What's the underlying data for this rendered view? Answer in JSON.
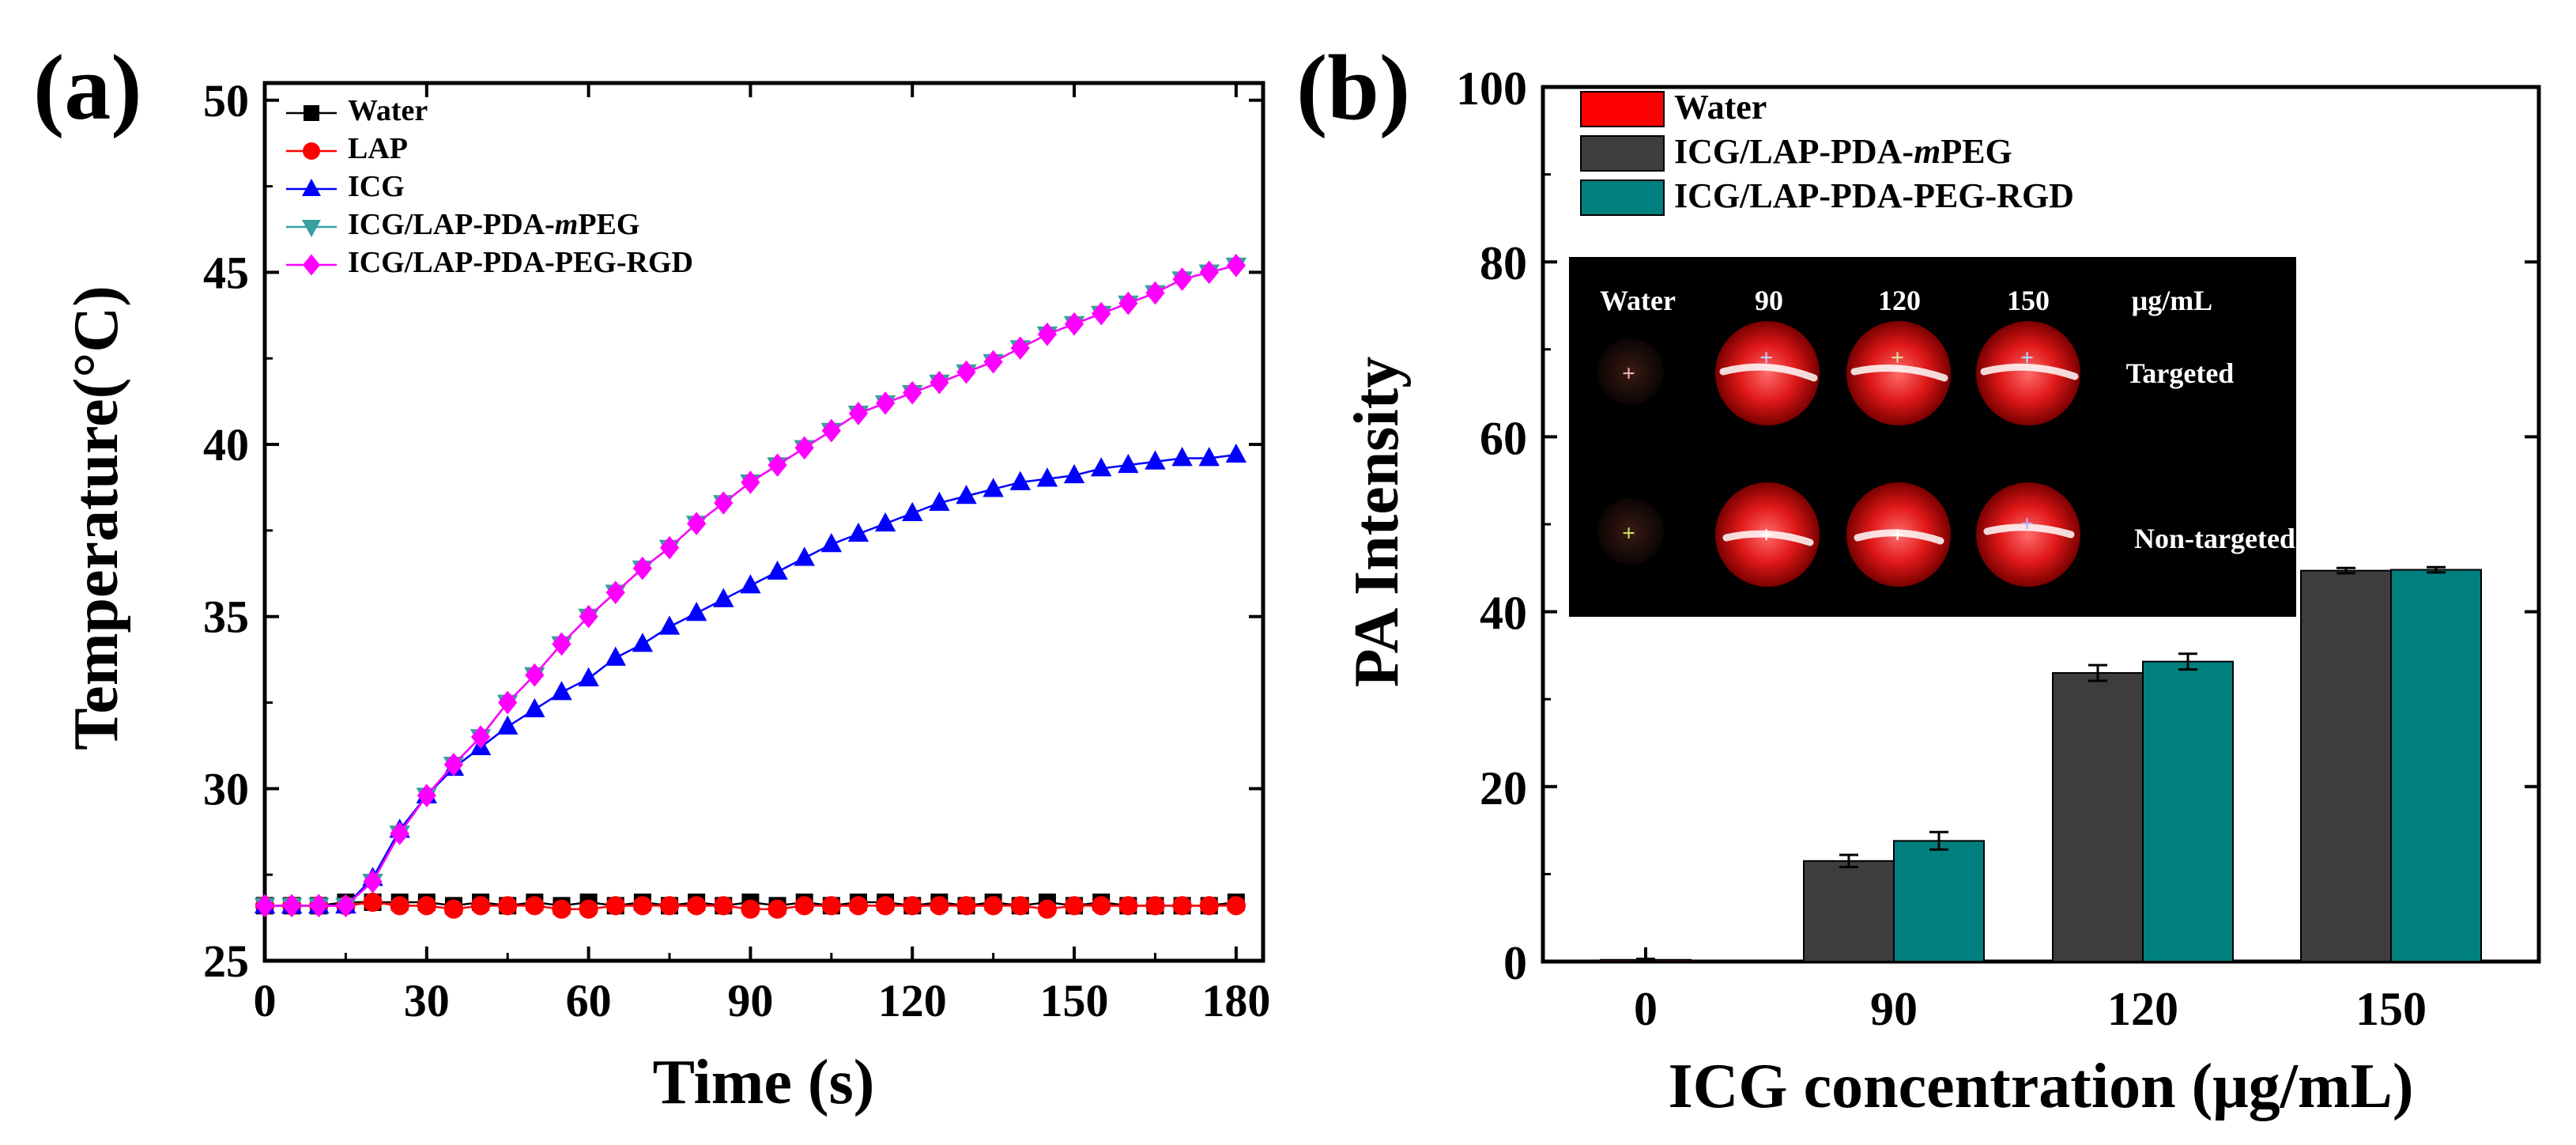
{
  "panel_labels": [
    "(a)",
    "(b)"
  ],
  "colors": {
    "water": "#000000",
    "lap": "#ff0000",
    "icg": "#0000ff",
    "mpeg": "#3a9e9e",
    "rgd": "#ff00ff",
    "bar_water": "#ff0000",
    "bar_mpeg": "#3d3d3d",
    "bar_rgd": "#007f7f"
  },
  "chart_data": [
    {
      "type": "line",
      "panel": "(a)",
      "title": "",
      "xlabel": "Time (s)",
      "ylabel": "Temperature(°C)",
      "xlim": [
        0,
        185
      ],
      "ylim": [
        25,
        50.5
      ],
      "xticks": [
        0,
        30,
        60,
        90,
        120,
        150,
        180
      ],
      "yticks": [
        25,
        30,
        35,
        40,
        45,
        50
      ],
      "legend_position": "top-left",
      "x": [
        0,
        5,
        10,
        15,
        20,
        25,
        30,
        35,
        40,
        45,
        50,
        55,
        60,
        65,
        70,
        75,
        80,
        85,
        90,
        95,
        100,
        105,
        110,
        115,
        120,
        125,
        130,
        135,
        140,
        145,
        150,
        155,
        160,
        165,
        170,
        175,
        180
      ],
      "series": [
        {
          "name": "Water",
          "marker": "square",
          "color_key": "water",
          "values": [
            26.6,
            26.6,
            26.6,
            26.7,
            26.7,
            26.7,
            26.7,
            26.6,
            26.7,
            26.6,
            26.7,
            26.6,
            26.7,
            26.6,
            26.7,
            26.6,
            26.7,
            26.6,
            26.7,
            26.6,
            26.7,
            26.6,
            26.7,
            26.7,
            26.6,
            26.7,
            26.6,
            26.7,
            26.6,
            26.7,
            26.6,
            26.7,
            26.6,
            26.6,
            26.6,
            26.6,
            26.7
          ]
        },
        {
          "name": "LAP",
          "marker": "circle",
          "color_key": "lap",
          "values": [
            26.6,
            26.6,
            26.6,
            26.6,
            26.7,
            26.6,
            26.6,
            26.5,
            26.6,
            26.6,
            26.6,
            26.5,
            26.5,
            26.6,
            26.6,
            26.6,
            26.6,
            26.6,
            26.5,
            26.5,
            26.6,
            26.6,
            26.6,
            26.6,
            26.6,
            26.6,
            26.6,
            26.6,
            26.6,
            26.5,
            26.6,
            26.6,
            26.6,
            26.6,
            26.6,
            26.6,
            26.6
          ]
        },
        {
          "name": "ICG",
          "marker": "triangle-up",
          "color_key": "icg",
          "values": [
            26.6,
            26.6,
            26.6,
            26.6,
            27.4,
            28.8,
            29.8,
            30.6,
            31.2,
            31.8,
            32.3,
            32.8,
            33.2,
            33.8,
            34.2,
            34.7,
            35.1,
            35.5,
            35.9,
            36.3,
            36.7,
            37.1,
            37.4,
            37.7,
            38.0,
            38.3,
            38.5,
            38.7,
            38.9,
            39.0,
            39.1,
            39.3,
            39.4,
            39.5,
            39.6,
            39.6,
            39.7
          ]
        },
        {
          "name": "ICG/LAP-PDA-mPEG",
          "marker": "triangle-down",
          "color_key": "mpeg",
          "values": [
            26.6,
            26.6,
            26.6,
            26.6,
            27.3,
            28.7,
            29.8,
            30.7,
            31.5,
            32.5,
            33.3,
            34.2,
            35.0,
            35.7,
            36.4,
            37.0,
            37.7,
            38.3,
            38.9,
            39.4,
            39.9,
            40.4,
            40.9,
            41.2,
            41.5,
            41.8,
            42.1,
            42.4,
            42.8,
            43.2,
            43.5,
            43.8,
            44.1,
            44.4,
            44.8,
            45.0,
            45.2
          ]
        },
        {
          "name": "ICG/LAP-PDA-PEG-RGD",
          "marker": "diamond",
          "color_key": "rgd",
          "values": [
            26.6,
            26.6,
            26.6,
            26.6,
            27.3,
            28.7,
            29.8,
            30.7,
            31.5,
            32.5,
            33.3,
            34.2,
            35.0,
            35.7,
            36.4,
            37.0,
            37.7,
            38.3,
            38.9,
            39.4,
            39.9,
            40.4,
            40.9,
            41.2,
            41.5,
            41.8,
            42.1,
            42.4,
            42.8,
            43.2,
            43.5,
            43.8,
            44.1,
            44.4,
            44.8,
            45.0,
            45.2
          ]
        }
      ]
    },
    {
      "type": "bar",
      "panel": "(b)",
      "title": "",
      "xlabel": "ICG concentration (μg/mL)",
      "ylabel": "PA Intensity",
      "ylim": [
        0,
        100
      ],
      "yticks": [
        0,
        20,
        40,
        60,
        80,
        100
      ],
      "categories": [
        "0",
        "90",
        "120",
        "150"
      ],
      "legend_position": "top-left",
      "series": [
        {
          "name": "Water",
          "color_key": "bar_water",
          "values": [
            0.2,
            null,
            null,
            null
          ],
          "errors": [
            0.1,
            null,
            null,
            null
          ]
        },
        {
          "name": "ICG/LAP-PDA-mPEG",
          "color_key": "bar_mpeg",
          "values": [
            null,
            11.5,
            33.0,
            44.7
          ],
          "errors": [
            null,
            0.7,
            0.9,
            0.3
          ]
        },
        {
          "name": "ICG/LAP-PDA-PEG-RGD",
          "color_key": "bar_rgd",
          "values": [
            null,
            13.8,
            34.3,
            44.8
          ],
          "errors": [
            null,
            1.0,
            0.9,
            0.3
          ]
        }
      ]
    }
  ],
  "inset": {
    "column_labels": [
      "Water",
      "90",
      "120",
      "150",
      "μg/mL"
    ],
    "row_labels": [
      "Targeted",
      "Non-targeted"
    ]
  }
}
